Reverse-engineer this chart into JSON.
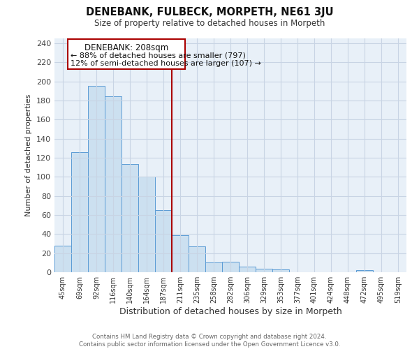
{
  "title": "DENEBANK, FULBECK, MORPETH, NE61 3JU",
  "subtitle": "Size of property relative to detached houses in Morpeth",
  "xlabel": "Distribution of detached houses by size in Morpeth",
  "ylabel": "Number of detached properties",
  "bar_labels": [
    "45sqm",
    "69sqm",
    "92sqm",
    "116sqm",
    "140sqm",
    "164sqm",
    "187sqm",
    "211sqm",
    "235sqm",
    "258sqm",
    "282sqm",
    "306sqm",
    "329sqm",
    "353sqm",
    "377sqm",
    "401sqm",
    "424sqm",
    "448sqm",
    "472sqm",
    "495sqm",
    "519sqm"
  ],
  "bar_values": [
    28,
    126,
    195,
    184,
    113,
    100,
    65,
    39,
    27,
    10,
    11,
    6,
    4,
    3,
    0,
    0,
    0,
    0,
    2,
    0,
    0
  ],
  "bar_color": "#cce0f0",
  "bar_edge_color": "#5b9bd5",
  "highlight_index": 7,
  "highlight_line_color": "#aa0000",
  "annotation_title": "DENEBANK: 208sqm",
  "annotation_line1": "← 88% of detached houses are smaller (797)",
  "annotation_line2": "12% of semi-detached houses are larger (107) →",
  "annotation_box_color": "#ffffff",
  "annotation_box_edge": "#aa0000",
  "ylim": [
    0,
    245
  ],
  "yticks": [
    0,
    20,
    40,
    60,
    80,
    100,
    120,
    140,
    160,
    180,
    200,
    220,
    240
  ],
  "footer_line1": "Contains HM Land Registry data © Crown copyright and database right 2024.",
  "footer_line2": "Contains public sector information licensed under the Open Government Licence v3.0.",
  "bg_color": "#ffffff",
  "plot_bg_color": "#e8f0f8",
  "grid_color": "#c8d4e4"
}
